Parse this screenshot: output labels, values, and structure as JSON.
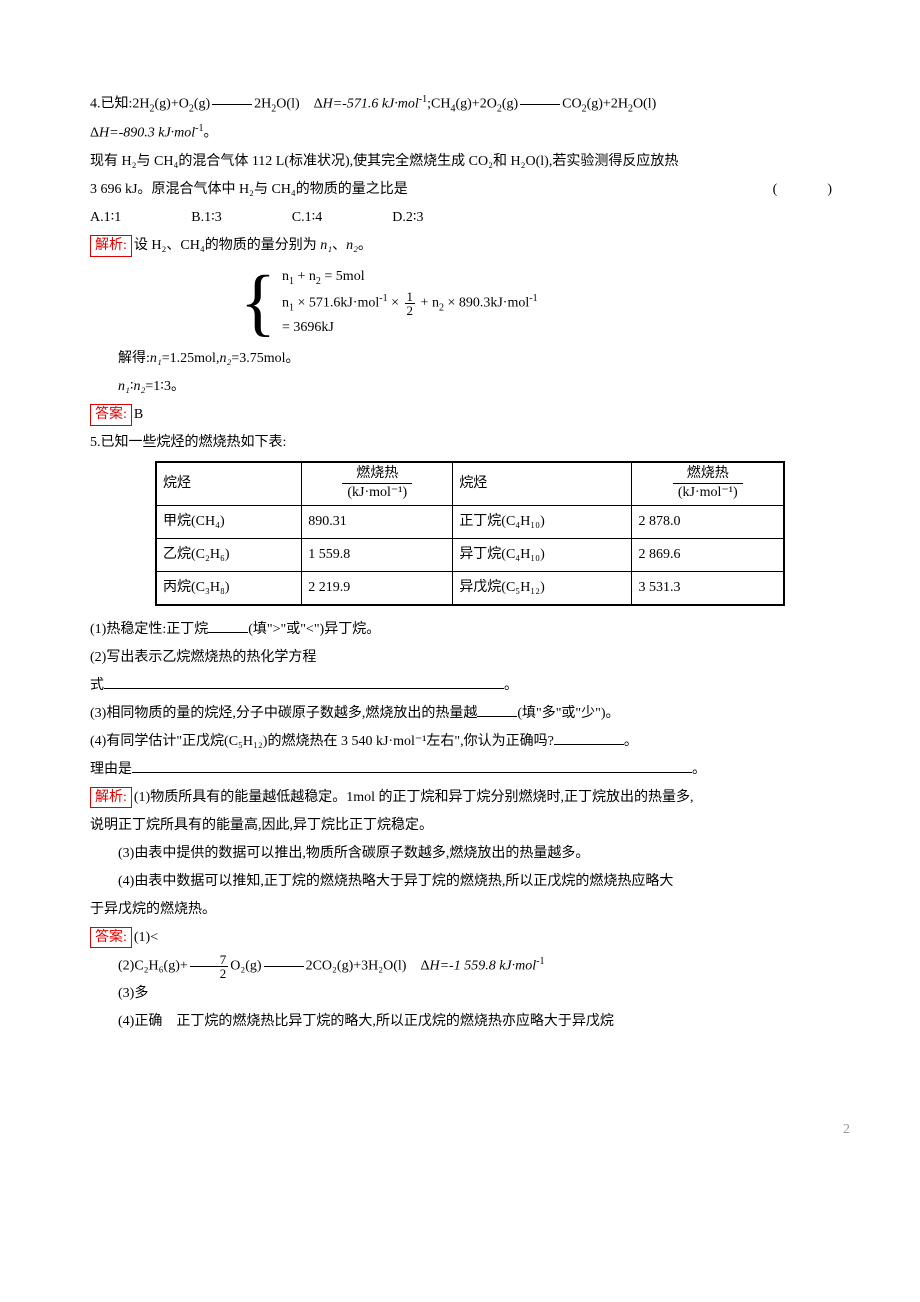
{
  "q4": {
    "prefix": "4.",
    "known": "已知:2H",
    "eq1_tail": "(g)+O",
    "eq1_tail2": "(g)",
    "eq1_prod": "2H",
    "eq1_prod2": "O(l)　Δ",
    "dH1": "H=-571.6 kJ·mol",
    "sep": ";CH",
    "eq2a": "(g)+2O",
    "eq2b": "(g)",
    "eq2c": "CO",
    "eq2d": "(g)+2H",
    "eq2e": "O(l)",
    "dH2_line": "Δ",
    "dH2": "H=-890.3 kJ·mol",
    "dH2_suffix": "。",
    "body1": "现有 H₂与 CH₄的混合气体 112 L(标准状况),使其完全燃烧生成 CO₂和 H₂O(l),若实验测得反应放热",
    "body2_a": "3 696 kJ。原混合气体中 H₂与 CH₄的物质的量之比是",
    "choices": {
      "A": "A.1∶1",
      "B": "B.1∶3",
      "C": "C.1∶4",
      "D": "D.2∶3"
    },
    "analysis_label": "解析:",
    "analysis_text": "设 H₂、CH₄的物质的量分别为 ",
    "n1": "n₁",
    "n2": "n₂",
    "period": "。",
    "eq_line1_a": "n",
    "eq_line1_b": " + n",
    "eq_line1_c": " = 5mol",
    "eq_line2_a": "n",
    "eq_line2_b": " × 571.6kJ·mol",
    "eq_line2_c": " × ",
    "eq_line2_d": " + n",
    "eq_line2_e": " × 890.3kJ·mol",
    "eq_line3": "= 3696kJ",
    "solve1": "解得:",
    "solve1b": "=1.25mol,",
    "solve1c": "=3.75mol。",
    "solve2a": "∶",
    "solve2b": "=1∶3。",
    "ans_label": "答案:",
    "ans": "B"
  },
  "q5": {
    "prefix": "5.",
    "intro": "已知一些烷烃的燃烧热如下表:",
    "table": {
      "h1": "烷烃",
      "h2a": "燃烧热",
      "h2b": "(kJ·mol⁻¹)",
      "rows": [
        [
          "甲烷(CH₄)",
          "890.31",
          "正丁烷(C₄H₁₀)",
          "2 878.0"
        ],
        [
          "乙烷(C₂H₆)",
          "1 559.8",
          "异丁烷(C₄H₁₀)",
          "2 869.6"
        ],
        [
          "丙烷(C₃H₈)",
          "2 219.9",
          "异戊烷(C₅H₁₂)",
          "3 531.3"
        ]
      ]
    },
    "p1a": "(1)热稳定性:正丁烷",
    "p1b": "(填\">\"或\"<\")异丁烷。",
    "p2a": "(2)写出表示乙烷燃烧热的热化学方程",
    "p2b": "式",
    "p2c": "。",
    "p3a": "(3)相同物质的量的烷烃,分子中碳原子数越多,燃烧放出的热量越",
    "p3b": "(填\"多\"或\"少\")。",
    "p4a": "(4)有同学估计\"正戊烷(C₅H₁₂)的燃烧热在 3 540 kJ·mol⁻¹左右\",你认为正确吗?",
    "p4b": "。",
    "p4c": "理由是",
    "p4d": "。",
    "analysis_label": "解析:",
    "ana1": "(1)物质所具有的能量越低越稳定。1mol 的正丁烷和异丁烷分别燃烧时,正丁烷放出的热量多,",
    "ana1b": "说明正丁烷所具有的能量高,因此,异丁烷比正丁烷稳定。",
    "ana3": "(3)由表中提供的数据可以推出,物质所含碳原子数越多,燃烧放出的热量越多。",
    "ana4a": "(4)由表中数据可以推知,正丁烷的燃烧热略大于异丁烷的燃烧热,所以正戊烷的燃烧热应略大",
    "ana4b": "于异戊烷的燃烧热。",
    "ans_label": "答案:",
    "a1": "(1)<",
    "a2a": "(2)C₂H₆(g)+",
    "a2_num": "7",
    "a2_den": "2",
    "a2b": "O₂(g)",
    "a2c": "2CO₂(g)+3H₂O(l)　Δ",
    "a2d": "H=-1 559.8 kJ·mol",
    "a3": "(3)多",
    "a4": "(4)正确　正丁烷的燃烧热比异丁烷的略大,所以正戊烷的燃烧热亦应略大于异戊烷"
  },
  "pagenum": "2"
}
